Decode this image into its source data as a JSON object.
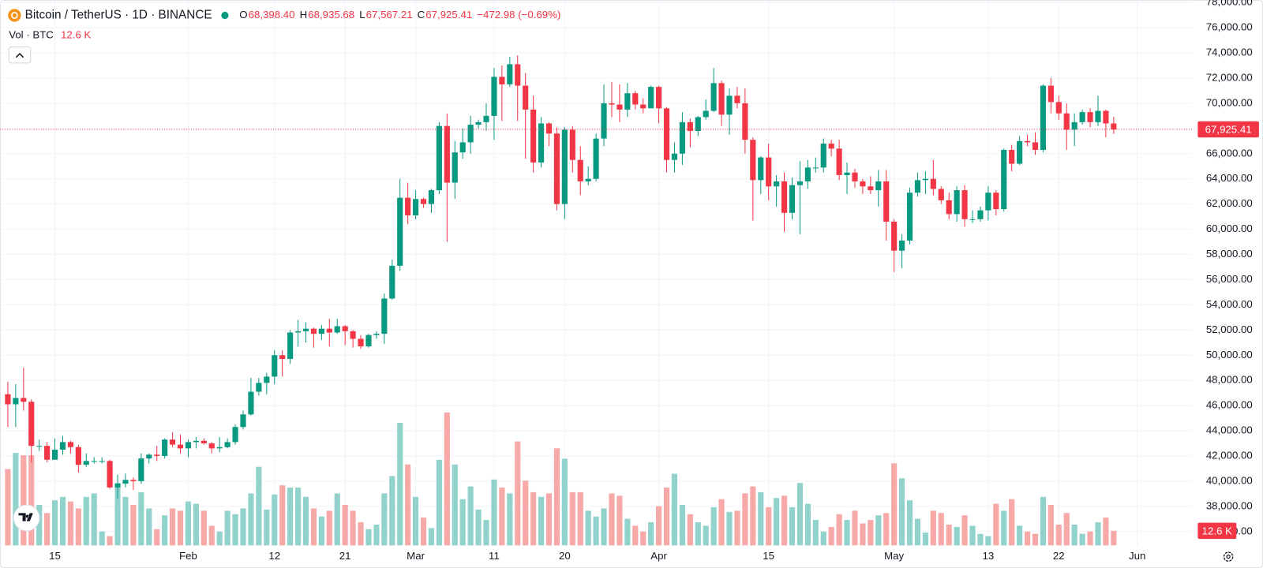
{
  "chart_data": {
    "type": "candlestick",
    "title": "Bitcoin / TetherUS · 1D · BINANCE",
    "ohlc_keys": [
      "O",
      "H",
      "L",
      "C"
    ],
    "ohlc_labels": [
      "68,398.40",
      "68,935.68",
      "67,567.21",
      "67,925.41"
    ],
    "change": "−472.98 (−0.69%)",
    "volume_title": "Vol · BTC",
    "volume_label": "12.6 K",
    "price_label": "67,925.41",
    "up_color": "#089981",
    "down_color": "#f23645",
    "volume_up_color": "#92d2cc",
    "volume_down_color": "#f7a9a7",
    "grid": true,
    "xlim": [
      -1,
      151
    ],
    "xticks": [
      {
        "value": 6,
        "label": "15"
      },
      {
        "value": 23,
        "label": "Feb"
      },
      {
        "value": 34,
        "label": "12"
      },
      {
        "value": 43,
        "label": "21"
      },
      {
        "value": 52,
        "label": "Mar"
      },
      {
        "value": 62,
        "label": "11"
      },
      {
        "value": 71,
        "label": "20"
      },
      {
        "value": 83,
        "label": "Apr"
      },
      {
        "value": 97,
        "label": "15"
      },
      {
        "value": 113,
        "label": "May"
      },
      {
        "value": 125,
        "label": "13"
      },
      {
        "value": 134,
        "label": "22"
      },
      {
        "value": 144,
        "label": "Jun"
      }
    ],
    "ylim": [
      34900,
      78200
    ],
    "yticks": [
      {
        "value": 36000,
        "label": "36,000.00"
      },
      {
        "value": 38000,
        "label": "38,000.00"
      },
      {
        "value": 40000,
        "label": "40,000.00"
      },
      {
        "value": 42000,
        "label": "42,000.00"
      },
      {
        "value": 44000,
        "label": "44,000.00"
      },
      {
        "value": 46000,
        "label": "46,000.00"
      },
      {
        "value": 48000,
        "label": "48,000.00"
      },
      {
        "value": 50000,
        "label": "50,000.00"
      },
      {
        "value": 52000,
        "label": "52,000.00"
      },
      {
        "value": 54000,
        "label": "54,000.00"
      },
      {
        "value": 56000,
        "label": "56,000.00"
      },
      {
        "value": 58000,
        "label": "58,000.00"
      },
      {
        "value": 60000,
        "label": "60,000.00"
      },
      {
        "value": 62000,
        "label": "62,000.00"
      },
      {
        "value": 64000,
        "label": "64,000.00"
      },
      {
        "value": 66000,
        "label": "66,000.00"
      },
      {
        "value": 68000,
        "label": "68,000.00"
      },
      {
        "value": 70000,
        "label": "70,000.00"
      },
      {
        "value": 72000,
        "label": "72,000.00"
      },
      {
        "value": 74000,
        "label": "74,000.00"
      },
      {
        "value": 76000,
        "label": "76,000.00"
      },
      {
        "value": 78000,
        "label": "78,000.00"
      }
    ],
    "y2lim": [
      0,
      472
    ],
    "open": [
      46900,
      46100,
      46600,
      46300,
      42800,
      42800,
      41700,
      42500,
      43100,
      42700,
      41300,
      41600,
      41600,
      41600,
      39500,
      39800,
      40100,
      40000,
      41800,
      42100,
      42000,
      43300,
      42900,
      42600,
      43100,
      43200,
      43000,
      42600,
      42700,
      43100,
      44300,
      45300,
      47100,
      47800,
      48300,
      50000,
      49700,
      51800,
      51900,
      52100,
      51700,
      52100,
      51800,
      52300,
      51900,
      51300,
      50700,
      51600,
      51700,
      54500,
      57100,
      62500,
      61100,
      62400,
      62000,
      63100,
      68200,
      63700,
      66100,
      66900,
      68300,
      68500,
      69000,
      72100,
      71500,
      73100,
      71400,
      69500,
      65300,
      68400,
      67600,
      62000,
      67900,
      65500,
      63800,
      64000,
      67200,
      70000,
      69900,
      69500,
      70800,
      69900,
      69600,
      71300,
      69600,
      65500,
      66000,
      68500,
      67800,
      68900,
      69400,
      71600,
      69100,
      70600,
      70000,
      67100,
      63900,
      65700,
      63400,
      63800,
      61300,
      63500,
      63800,
      64900,
      64900,
      66800,
      66400,
      64300,
      64500,
      63800,
      63400,
      63100,
      63800,
      60600,
      58300,
      59100,
      62900,
      63900,
      64000,
      63200,
      62300,
      61200,
      63100,
      60800,
      60800,
      61500,
      62900,
      61600,
      66300,
      65200,
      67000,
      66900,
      66300,
      71400,
      70100,
      69200,
      67900,
      68500,
      69300,
      68500,
      69400,
      68398.4
    ],
    "high": [
      47900,
      47700,
      49000,
      46500,
      43300,
      43100,
      43400,
      43600,
      43200,
      42900,
      42200,
      41900,
      41900,
      41700,
      40500,
      40600,
      40300,
      42200,
      42200,
      42800,
      43400,
      43900,
      43700,
      43300,
      43500,
      43400,
      43100,
      43500,
      43400,
      44500,
      45600,
      48200,
      48200,
      48600,
      50400,
      50400,
      52000,
      52800,
      52600,
      52200,
      52400,
      52900,
      52900,
      52400,
      52000,
      51600,
      51700,
      51900,
      54900,
      57600,
      64000,
      63700,
      63100,
      62500,
      63200,
      68500,
      69200,
      67000,
      68000,
      69000,
      68700,
      70000,
      72800,
      73000,
      73700,
      73800,
      72400,
      70600,
      68900,
      68500,
      68100,
      68100,
      68200,
      66600,
      65000,
      67600,
      71500,
      71700,
      71500,
      71600,
      71000,
      70400,
      71400,
      71400,
      69700,
      66900,
      69300,
      68800,
      69000,
      70300,
      72800,
      71800,
      71200,
      71300,
      71200,
      67300,
      65800,
      66800,
      64300,
      64500,
      64100,
      65400,
      65500,
      65700,
      67200,
      67100,
      67100,
      65300,
      64800,
      64000,
      64200,
      64700,
      64700,
      60800,
      59600,
      63300,
      64500,
      64600,
      65500,
      63400,
      62900,
      63400,
      63500,
      61500,
      61800,
      63400,
      63100,
      66400,
      66700,
      67400,
      67500,
      67700,
      71500,
      72000,
      70600,
      70000,
      69200,
      69500,
      69600,
      70600,
      69500,
      68935.68
    ],
    "low": [
      44300,
      44300,
      45600,
      41500,
      42400,
      41500,
      41700,
      42100,
      42200,
      40700,
      41100,
      41400,
      41400,
      39400,
      38600,
      39500,
      39300,
      39800,
      41400,
      41600,
      41800,
      42700,
      42200,
      41900,
      42600,
      42900,
      42200,
      42300,
      42600,
      42900,
      44100,
      45200,
      46800,
      46900,
      47700,
      48300,
      49300,
      50700,
      51000,
      50600,
      51200,
      50700,
      51700,
      50800,
      50600,
      50500,
      50600,
      51300,
      50900,
      54400,
      56700,
      60400,
      60800,
      61700,
      61300,
      62800,
      59000,
      62400,
      65600,
      66000,
      68000,
      67800,
      67100,
      68600,
      71300,
      68600,
      65600,
      64500,
      64900,
      66600,
      61500,
      60800,
      64500,
      62700,
      63500,
      63800,
      66600,
      68900,
      68500,
      68900,
      69500,
      69200,
      69600,
      68400,
      64500,
      64500,
      65100,
      66500,
      67400,
      68700,
      69300,
      68200,
      67500,
      69600,
      66000,
      60700,
      62800,
      62300,
      61800,
      59800,
      60800,
      59600,
      63200,
      64500,
      64500,
      65800,
      63900,
      62800,
      63300,
      62800,
      62800,
      61800,
      59100,
      56600,
      56900,
      58800,
      62600,
      62800,
      62700,
      62000,
      60800,
      60600,
      60200,
      60500,
      60600,
      60700,
      61100,
      61400,
      64600,
      65100,
      66600,
      65900,
      66100,
      69200,
      68700,
      66300,
      66600,
      68300,
      68100,
      68200,
      67300,
      67567.21
    ],
    "close": [
      46100,
      46600,
      46300,
      42800,
      42800,
      41700,
      42500,
      43100,
      42700,
      41300,
      41600,
      41600,
      41600,
      39500,
      39800,
      40100,
      40000,
      41800,
      42100,
      42000,
      43300,
      42900,
      42600,
      43100,
      43200,
      43000,
      42600,
      42700,
      43100,
      44300,
      45300,
      47100,
      47800,
      48300,
      50000,
      49700,
      51800,
      51900,
      52100,
      51700,
      52100,
      51800,
      52300,
      51900,
      51300,
      50700,
      51600,
      51700,
      54500,
      57100,
      62500,
      61100,
      62400,
      62000,
      63100,
      68200,
      63700,
      66100,
      66900,
      68300,
      68500,
      69000,
      72100,
      71500,
      73100,
      71400,
      69500,
      65300,
      68400,
      67600,
      62000,
      67900,
      65500,
      63800,
      64000,
      67200,
      70000,
      69900,
      69500,
      70800,
      69900,
      69600,
      71300,
      69600,
      65500,
      66000,
      68500,
      67800,
      68900,
      69400,
      71600,
      69100,
      70600,
      70000,
      67100,
      63900,
      65700,
      63400,
      63800,
      61300,
      63500,
      63800,
      64900,
      64900,
      66800,
      66400,
      64300,
      64500,
      63800,
      63400,
      63100,
      63800,
      60600,
      58300,
      59100,
      62900,
      63900,
      64000,
      63200,
      62300,
      61200,
      63100,
      60800,
      60800,
      61500,
      62900,
      61600,
      66300,
      65200,
      67000,
      66900,
      66300,
      71400,
      70100,
      69200,
      67900,
      68500,
      69300,
      68500,
      69400,
      68400,
      67925.41
    ],
    "volume": [
      66,
      80,
      78,
      78,
      35,
      28,
      39,
      42,
      38,
      32,
      42,
      45,
      12,
      8,
      54,
      42,
      35,
      46,
      32,
      14,
      26,
      32,
      30,
      38,
      36,
      30,
      17,
      12,
      30,
      27,
      32,
      45,
      68,
      31,
      44,
      52,
      50,
      50,
      42,
      32,
      25,
      30,
      45,
      35,
      30,
      20,
      14,
      18,
      45,
      60,
      106,
      70,
      42,
      24,
      15,
      74,
      115,
      70,
      40,
      51,
      31,
      22,
      57,
      50,
      45,
      90,
      56,
      46,
      42,
      45,
      84,
      75,
      46,
      46,
      30,
      25,
      32,
      45,
      43,
      23,
      17,
      12,
      20,
      34,
      50,
      62,
      35,
      27,
      20,
      17,
      33,
      40,
      29,
      30,
      45,
      51,
      46,
      33,
      41,
      43,
      33,
      54,
      36,
      22,
      12,
      16,
      27,
      22,
      30,
      19,
      22,
      26,
      28,
      71,
      58,
      39,
      23,
      11,
      30,
      28,
      18,
      16,
      26,
      17,
      10,
      8,
      36,
      30,
      40,
      17,
      12,
      10,
      42,
      35,
      18,
      28,
      18,
      10,
      12,
      20,
      24,
      12.6
    ]
  }
}
